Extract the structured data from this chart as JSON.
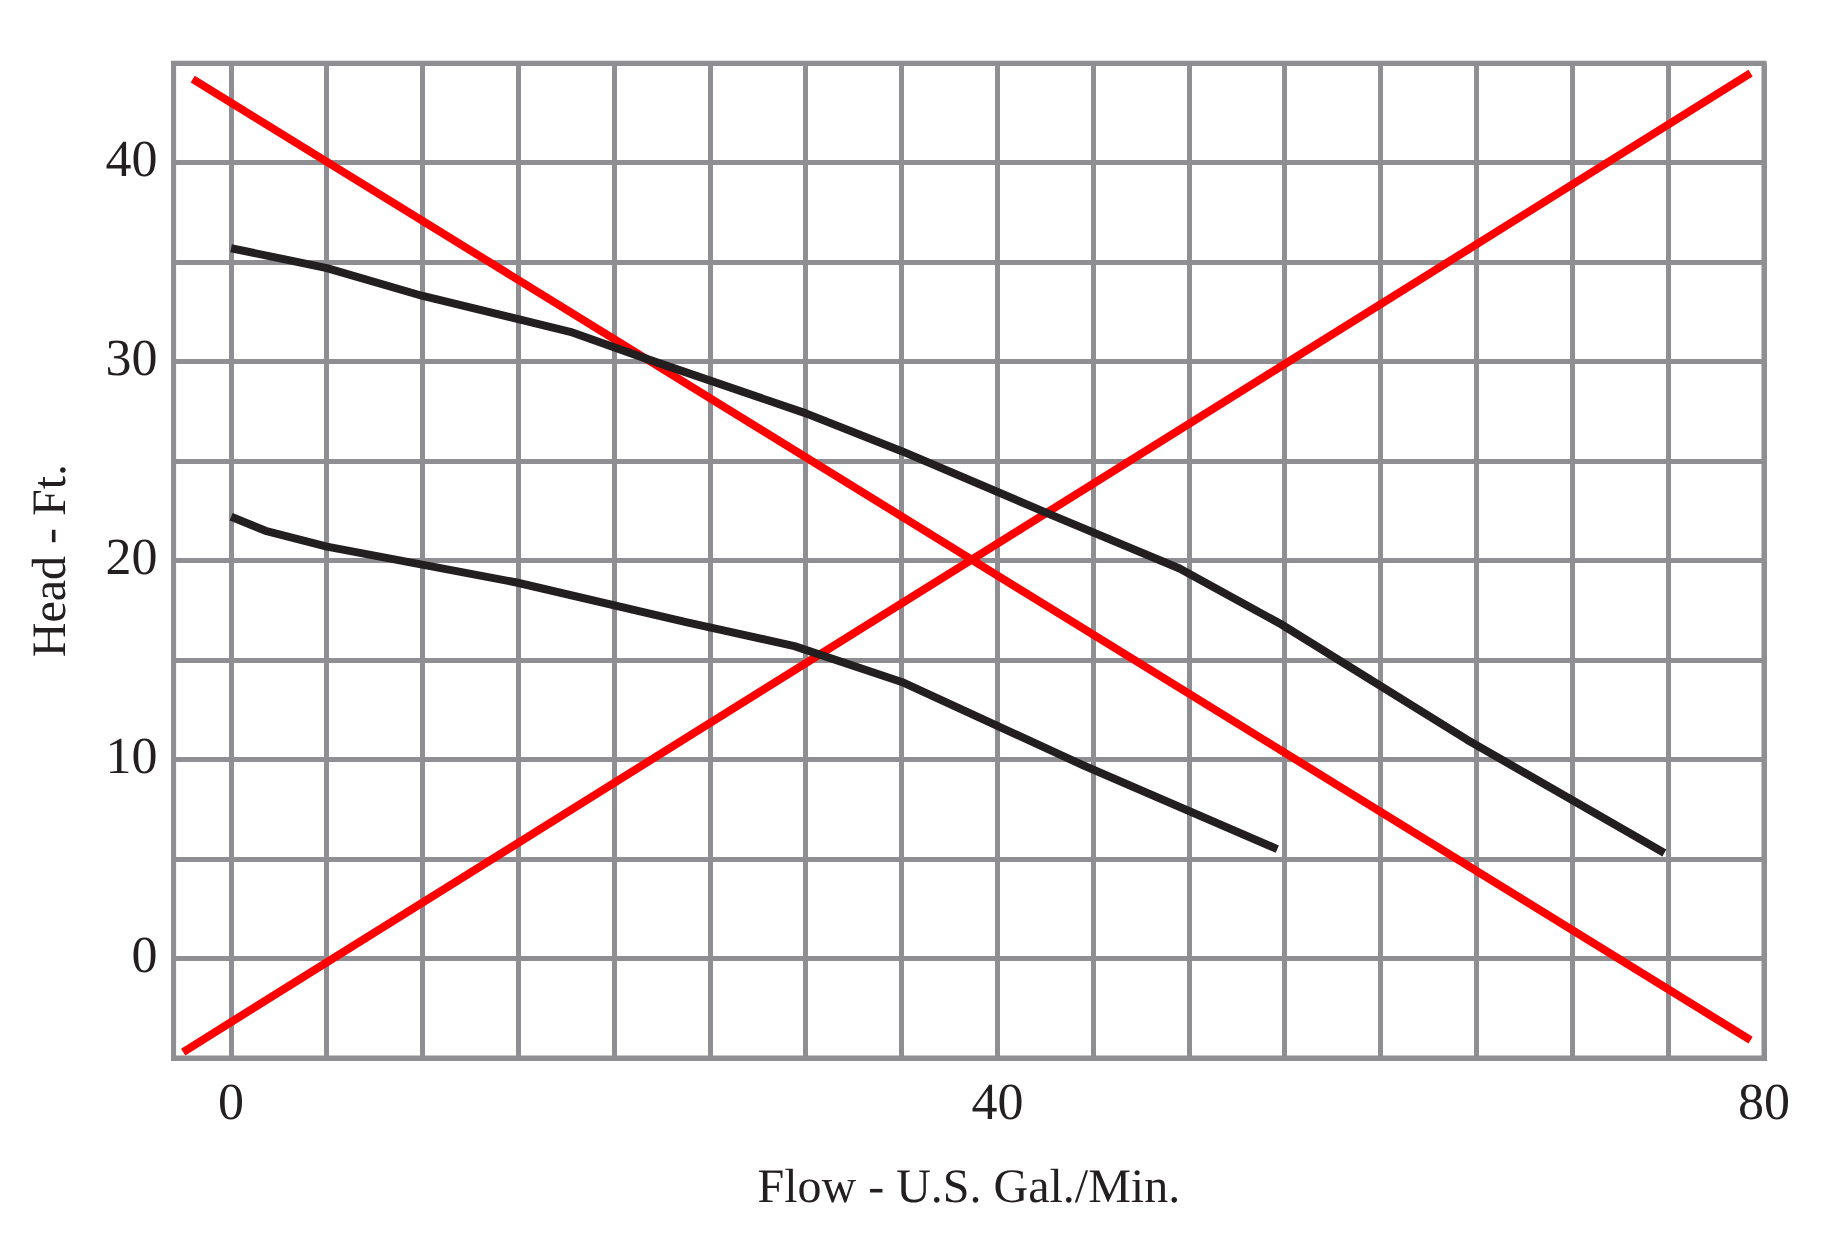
{
  "chart_data": {
    "type": "line",
    "xlabel": "Flow - U.S. Gal./Min.",
    "ylabel": "Head - Ft.",
    "xlim": [
      -3,
      80
    ],
    "ylim": [
      -5,
      45
    ],
    "xticks": [
      0,
      {
        "value": 5,
        "label": null
      },
      {
        "value": 10,
        "label": null
      },
      {
        "value": 15,
        "label": null
      },
      {
        "value": 20,
        "label": null
      },
      {
        "value": 25,
        "label": null
      },
      {
        "value": 30,
        "label": null
      },
      {
        "value": 35,
        "label": null
      },
      40,
      {
        "value": 45,
        "label": null
      },
      {
        "value": 50,
        "label": null
      },
      {
        "value": 55,
        "label": null
      },
      {
        "value": 60,
        "label": null
      },
      {
        "value": 65,
        "label": null
      },
      {
        "value": 70,
        "label": null
      },
      {
        "value": 75,
        "label": null
      },
      80
    ],
    "yticks": [
      0,
      {
        "value": 5,
        "label": null
      },
      10,
      {
        "value": 15,
        "label": null
      },
      20,
      {
        "value": 25,
        "label": null
      },
      30,
      {
        "value": 35,
        "label": null
      },
      40,
      {
        "value": 45,
        "label": null
      }
    ],
    "grid": true,
    "legend": false,
    "marker": "none",
    "series": [
      {
        "color": "#231f20",
        "x": [
          0,
          5,
          10,
          17.7,
          22.1,
          30,
          35,
          42.8,
          49.5,
          54.8,
          64.5,
          74.8
        ],
        "values": [
          35.7,
          34.7,
          33.3,
          31.5,
          30,
          27.4,
          25.5,
          22.3,
          19.6,
          16.8,
          11,
          5.3
        ]
      },
      {
        "color": "#231f20",
        "x": [
          0,
          1.8,
          5,
          14.9,
          23.8,
          29.4,
          35,
          44.5,
          54.6
        ],
        "values": [
          22.2,
          21.5,
          20.7,
          18.9,
          16.9,
          15.7,
          13.9,
          9.7,
          5.5
        ]
      },
      {
        "color": "#ff0000",
        "x": [
          -2,
          79.3
        ],
        "values": [
          44.2,
          -4.1
        ]
      },
      {
        "color": "#ff0000",
        "x": [
          -2.5,
          79.3
        ],
        "values": [
          -4.7,
          44.5
        ]
      }
    ]
  }
}
